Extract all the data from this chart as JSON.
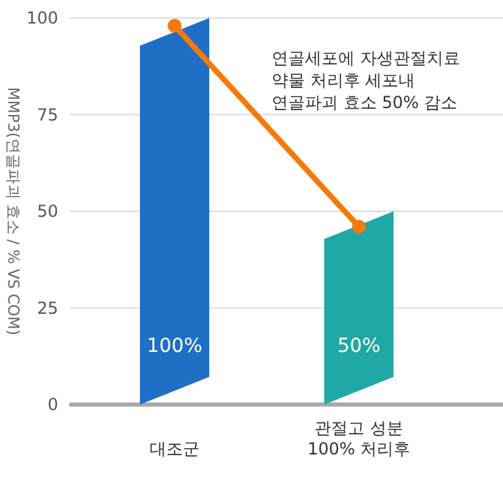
{
  "chart_data": {
    "type": "bar",
    "ylabel": "MMP3(연골파괴 효소 / % VS COM)",
    "categories": [
      "대조군",
      "관절고 성분\n100% 처리후"
    ],
    "series": [
      {
        "colors": [
          "#1f6fc6",
          "#1fa8a6"
        ],
        "values": [
          100,
          50
        ],
        "value_labels": [
          "100%",
          "50%"
        ]
      },
      {
        "type": "line",
        "color": "#f47a0c",
        "values": [
          98,
          46
        ],
        "marker": "circle"
      }
    ],
    "ylim": [
      0,
      100
    ],
    "yticks": [
      0,
      25,
      50,
      75,
      100
    ],
    "grid": "y",
    "annotations": [
      "연골세포에 자생관절치료\n약물 처리후 세포내\n연골파괴 효소 50% 감소"
    ]
  }
}
